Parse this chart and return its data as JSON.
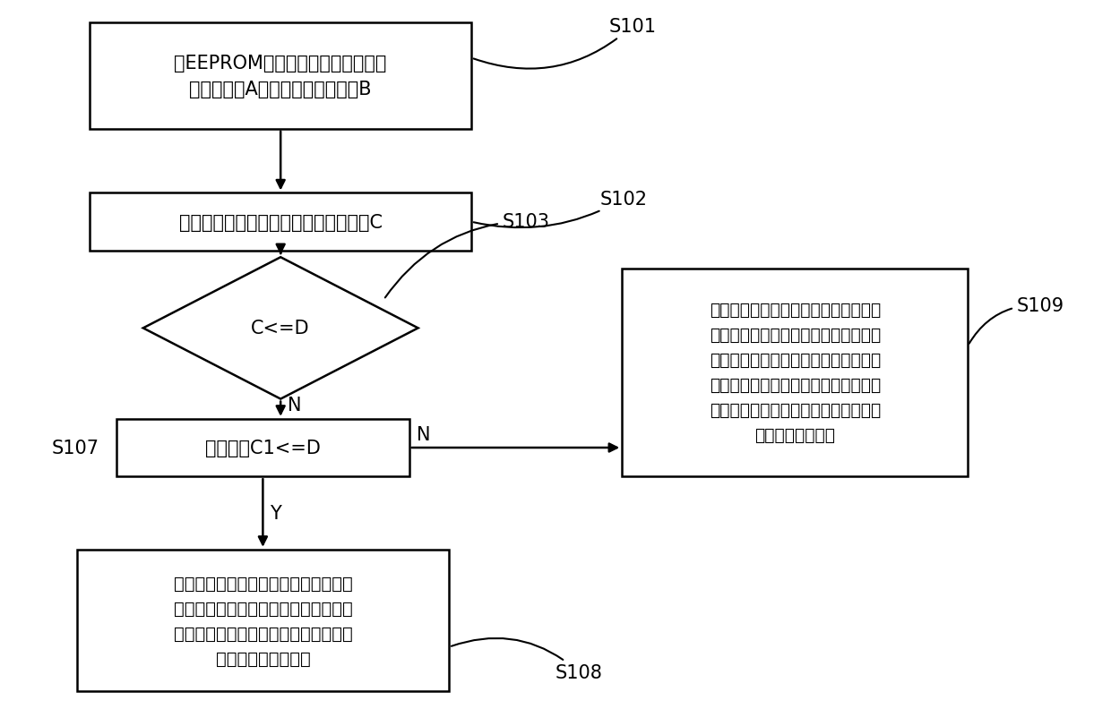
{
  "bg_color": "#ffffff",
  "line_color": "#000000",
  "box_fill": "#ffffff",
  "text_color": "#000000",
  "s101_text": "从EEPROM中获取上一循环内上电时\n最小位置值A和下电时最小位置值B",
  "s102_text": "当前循环中加速踏板开度对应的电压值C",
  "s103_text": "C<=D",
  "s107_text": "重新采样C1<=D",
  "s109_text": "判定加速踏板出现卡滞，并根据重新采\n集的电压值的均值进行自学习，否则自\n学习失败时，进一步判断下电时最小位\n置值是否大于所述标定阈值，如果是，\n则以下电时最小位置值进行自学习，否\n则，触发故障模式",
  "s108_text": "根据重新采集的电压值的均值进行自学\n习，否则自学习失败时，如果下电时最\n小位置值小于标定阈值，则以下电时最\n小位置值进行自学习",
  "label_s101": "S101",
  "label_s102": "S102",
  "label_s103": "S103",
  "label_s107": "S107",
  "label_s108": "S108",
  "label_s109": "S109",
  "n_label": "N",
  "y_label": "Y"
}
